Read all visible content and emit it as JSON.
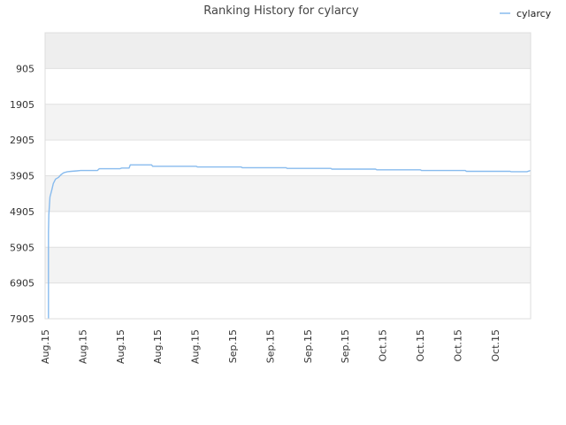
{
  "chart_data": {
    "type": "line",
    "title": "Ranking History for cylarcy",
    "xlabel": "",
    "ylabel": "",
    "y_inverted": true,
    "ylim": [
      -95,
      7905
    ],
    "y_ticks": [
      905,
      1905,
      2905,
      3905,
      4905,
      5905,
      6905,
      7905
    ],
    "x_tick_labels": [
      "Aug.15",
      "Aug.15",
      "Aug.15",
      "Aug.15",
      "Aug.15",
      "Sep.15",
      "Sep.15",
      "Sep.15",
      "Sep.15",
      "Oct.15",
      "Oct.15",
      "Oct.15",
      "Oct.15"
    ],
    "xlim": [
      0,
      130
    ],
    "grid": true,
    "band_colors": [
      "#eeeeee",
      "#ffffff",
      "#f3f3f3",
      "#ffffff",
      "#f3f3f3",
      "#ffffff",
      "#f3f3f3",
      "#ffffff"
    ],
    "legend_position": "top-right",
    "series": [
      {
        "name": "cylarcy",
        "color": "#88bbee",
        "points": [
          [
            0.9,
            7905
          ],
          [
            0.9,
            5500
          ],
          [
            1.0,
            5000
          ],
          [
            1.3,
            4500
          ],
          [
            1.8,
            4300
          ],
          [
            2.2,
            4120
          ],
          [
            2.8,
            4000
          ],
          [
            3.6,
            3950
          ],
          [
            4.2,
            3880
          ],
          [
            5.0,
            3820
          ],
          [
            6.0,
            3790
          ],
          [
            7.0,
            3780
          ],
          [
            8.5,
            3770
          ],
          [
            9.5,
            3760
          ],
          [
            14.0,
            3760
          ],
          [
            14.5,
            3710
          ],
          [
            20.0,
            3710
          ],
          [
            20.5,
            3690
          ],
          [
            22.5,
            3690
          ],
          [
            22.8,
            3600
          ],
          [
            28.5,
            3600
          ],
          [
            28.8,
            3640
          ],
          [
            40.5,
            3640
          ],
          [
            40.8,
            3660
          ],
          [
            52.5,
            3660
          ],
          [
            52.8,
            3680
          ],
          [
            64.5,
            3680
          ],
          [
            64.8,
            3700
          ],
          [
            76.5,
            3700
          ],
          [
            76.8,
            3720
          ],
          [
            88.5,
            3720
          ],
          [
            88.8,
            3740
          ],
          [
            100.5,
            3740
          ],
          [
            100.8,
            3760
          ],
          [
            112.5,
            3760
          ],
          [
            112.8,
            3780
          ],
          [
            124.5,
            3780
          ],
          [
            124.8,
            3790
          ],
          [
            129.0,
            3790
          ],
          [
            130.0,
            3760
          ]
        ]
      }
    ]
  }
}
